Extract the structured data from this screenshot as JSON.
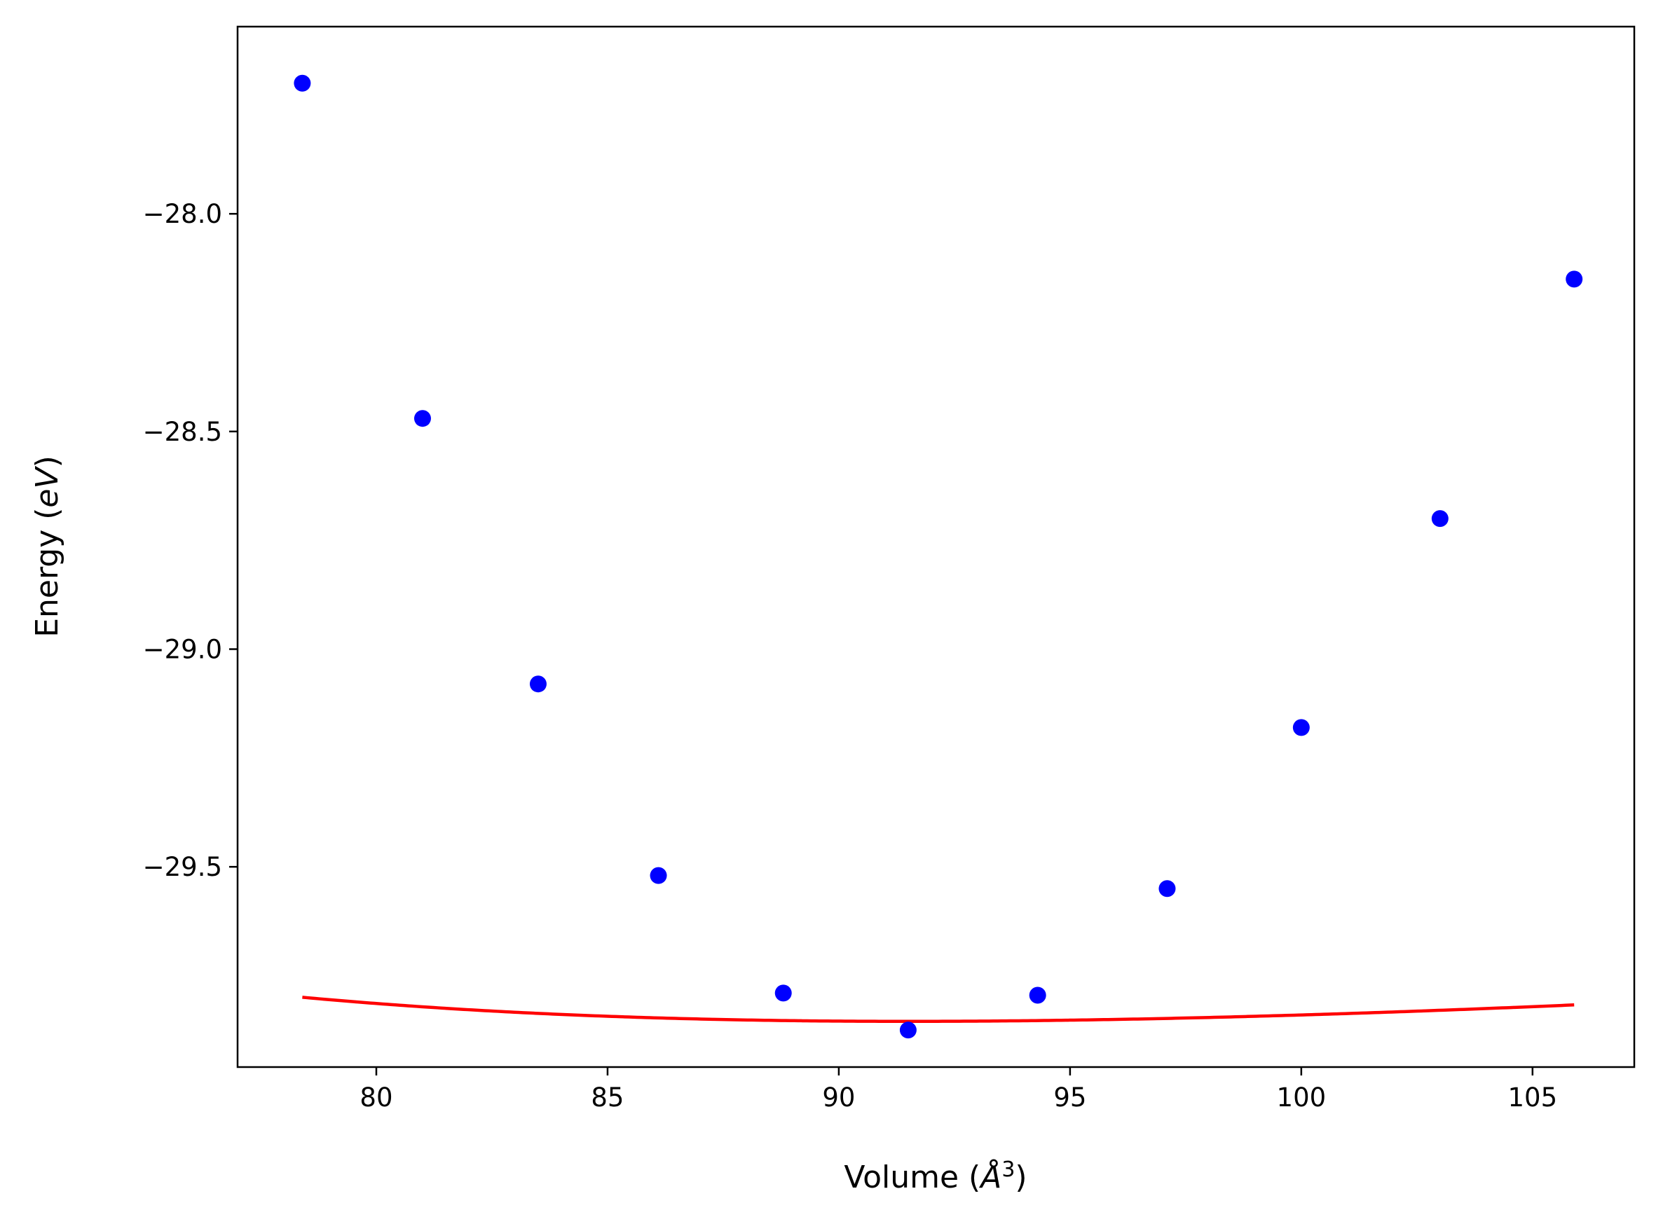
{
  "chart_data": {
    "type": "scatter",
    "xlabel": {
      "prefix": "Volume (",
      "unit": "Å",
      "exponent": "3",
      "suffix": ")"
    },
    "ylabel": {
      "prefix": "Energy (",
      "unit": "eV",
      "suffix": ")"
    },
    "xlim": [
      77.0,
      107.2
    ],
    "ylim": [
      -29.96,
      -27.57
    ],
    "x_ticks": [
      80,
      85,
      90,
      95,
      100,
      105
    ],
    "x_tick_labels": [
      "80",
      "85",
      "90",
      "95",
      "100",
      "105"
    ],
    "y_ticks": [
      -28.0,
      -28.5,
      -29.0,
      -29.5
    ],
    "y_tick_labels": [
      "−28.0",
      "−28.5",
      "−29.0",
      "−29.5"
    ],
    "grid": false,
    "series": [
      {
        "style": "markers",
        "color": "#0000ff",
        "points": [
          {
            "x": 78.4,
            "y": -27.7
          },
          {
            "x": 81.0,
            "y": -28.47
          },
          {
            "x": 83.5,
            "y": -29.08
          },
          {
            "x": 86.1,
            "y": -29.52
          },
          {
            "x": 88.8,
            "y": -29.79
          },
          {
            "x": 91.5,
            "y": -29.875
          },
          {
            "x": 94.3,
            "y": -29.795
          },
          {
            "x": 97.1,
            "y": -29.55
          },
          {
            "x": 100.0,
            "y": -29.18
          },
          {
            "x": 103.0,
            "y": -28.7
          },
          {
            "x": 105.9,
            "y": -28.15
          }
        ]
      },
      {
        "style": "line",
        "color": "#ff0000",
        "fit": {
          "model": "birch-murnaghan",
          "E0": -29.855,
          "V0": 91.5,
          "B0_eV_per_A3": 0.044,
          "B0_prime": 4.7,
          "x_range": [
            78.4,
            105.9
          ]
        }
      }
    ]
  }
}
